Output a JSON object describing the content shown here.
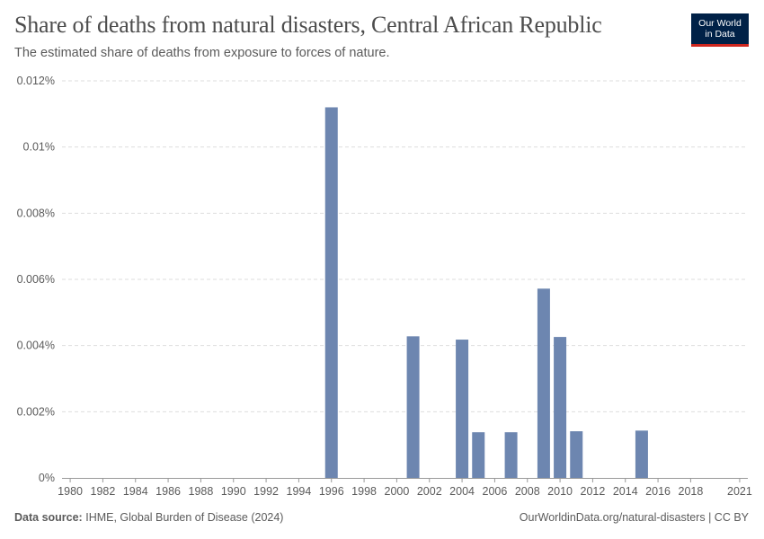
{
  "header": {
    "title": "Share of deaths from natural disasters, Central African Republic",
    "subtitle": "The estimated share of deaths from exposure to forces of nature."
  },
  "logo": {
    "line1": "Our World",
    "line2": "in Data"
  },
  "footer": {
    "source_label": "Data source:",
    "source_value": "IHME, Global Burden of Disease (2024)",
    "attribution": "OurWorldinData.org/natural-disasters | CC BY"
  },
  "colors": {
    "bar": "#6d86b0",
    "grid": "#dddddd",
    "axis": "#999999"
  },
  "chart_data": {
    "type": "bar",
    "title": "Share of deaths from natural disasters, Central African Republic",
    "subtitle": "The estimated share of deaths from exposure to forces of nature.",
    "xlabel": "",
    "ylabel": "",
    "x_range": [
      1980,
      2021
    ],
    "ylim": [
      0,
      0.012
    ],
    "y_unit": "%",
    "y_ticks": [
      {
        "value": 0,
        "label": "0%"
      },
      {
        "value": 0.002,
        "label": "0.002%"
      },
      {
        "value": 0.004,
        "label": "0.004%"
      },
      {
        "value": 0.006,
        "label": "0.006%"
      },
      {
        "value": 0.008,
        "label": "0.008%"
      },
      {
        "value": 0.01,
        "label": "0.01%"
      },
      {
        "value": 0.012,
        "label": "0.012%"
      }
    ],
    "x_ticks": [
      "1980",
      "1982",
      "1984",
      "1986",
      "1988",
      "1990",
      "1992",
      "1994",
      "1996",
      "1998",
      "2000",
      "2002",
      "2004",
      "2006",
      "2008",
      "2010",
      "2012",
      "2014",
      "2016",
      "2018",
      "2021"
    ],
    "series": [
      {
        "name": "Central African Republic",
        "points": [
          {
            "year": 1996,
            "value": 0.0112
          },
          {
            "year": 2001,
            "value": 0.00428
          },
          {
            "year": 2004,
            "value": 0.00418
          },
          {
            "year": 2005,
            "value": 0.00138
          },
          {
            "year": 2007,
            "value": 0.00138
          },
          {
            "year": 2009,
            "value": 0.00572
          },
          {
            "year": 2010,
            "value": 0.00426
          },
          {
            "year": 2011,
            "value": 0.00141
          },
          {
            "year": 2015,
            "value": 0.00143
          }
        ]
      }
    ]
  }
}
